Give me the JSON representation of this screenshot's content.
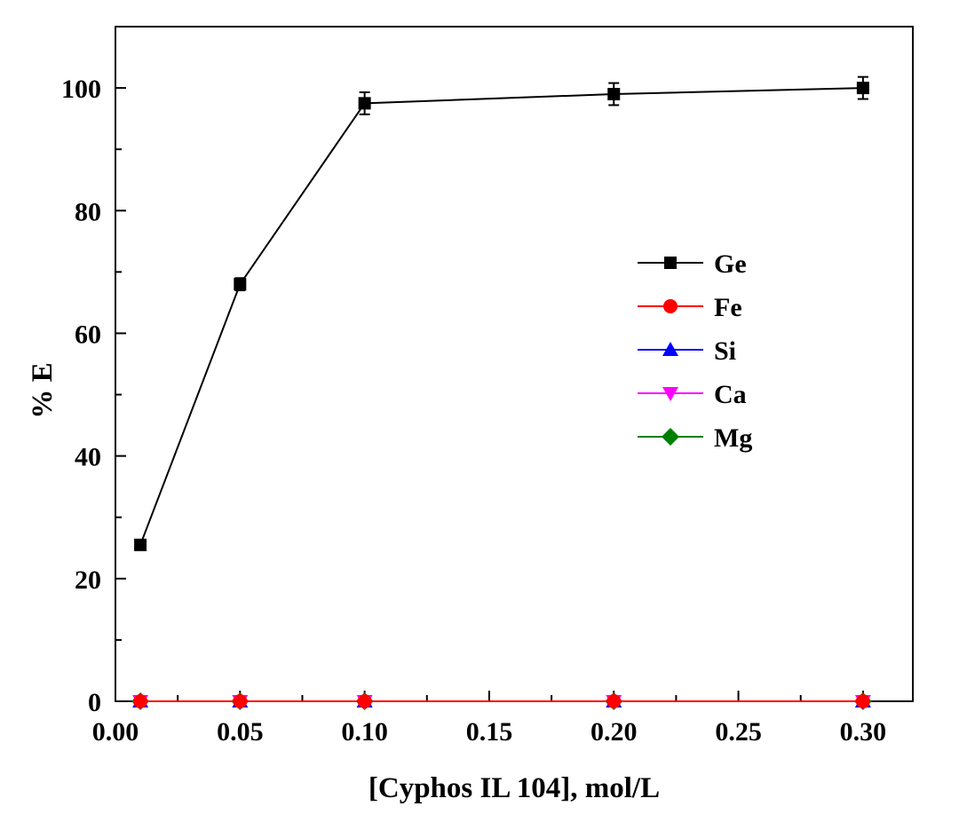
{
  "chart_data": {
    "type": "line",
    "xlabel": "[Cyphos IL 104], mol/L",
    "ylabel": "% E",
    "xlim": [
      0.0,
      0.32
    ],
    "ylim": [
      0,
      110
    ],
    "x_ticks": [
      "0.00",
      "0.05",
      "0.10",
      "0.15",
      "0.20",
      "0.25",
      "0.30"
    ],
    "y_ticks": [
      "0",
      "20",
      "40",
      "60",
      "80",
      "100"
    ],
    "grid": false,
    "legend_position": "right",
    "x": [
      0.01,
      0.05,
      0.1,
      0.2,
      0.3
    ],
    "series": [
      {
        "name": "Ge",
        "color": "#000000",
        "marker": "square",
        "values": [
          25.5,
          68.0,
          97.5,
          99.0,
          100.0
        ],
        "error": [
          0.8,
          1.0,
          1.8,
          1.8,
          1.8
        ]
      },
      {
        "name": "Fe",
        "color": "#ff0000",
        "marker": "circle",
        "values": [
          0,
          0,
          0,
          0,
          0
        ]
      },
      {
        "name": "Si",
        "color": "#0000ff",
        "marker": "triangle-up",
        "values": [
          0,
          0,
          0,
          0,
          0
        ]
      },
      {
        "name": "Ca",
        "color": "#ff00ff",
        "marker": "triangle-down",
        "values": [
          0,
          0,
          0,
          0,
          0
        ]
      },
      {
        "name": "Mg",
        "color": "#008000",
        "marker": "diamond",
        "values": [
          0,
          0,
          0,
          0,
          0
        ]
      }
    ]
  }
}
